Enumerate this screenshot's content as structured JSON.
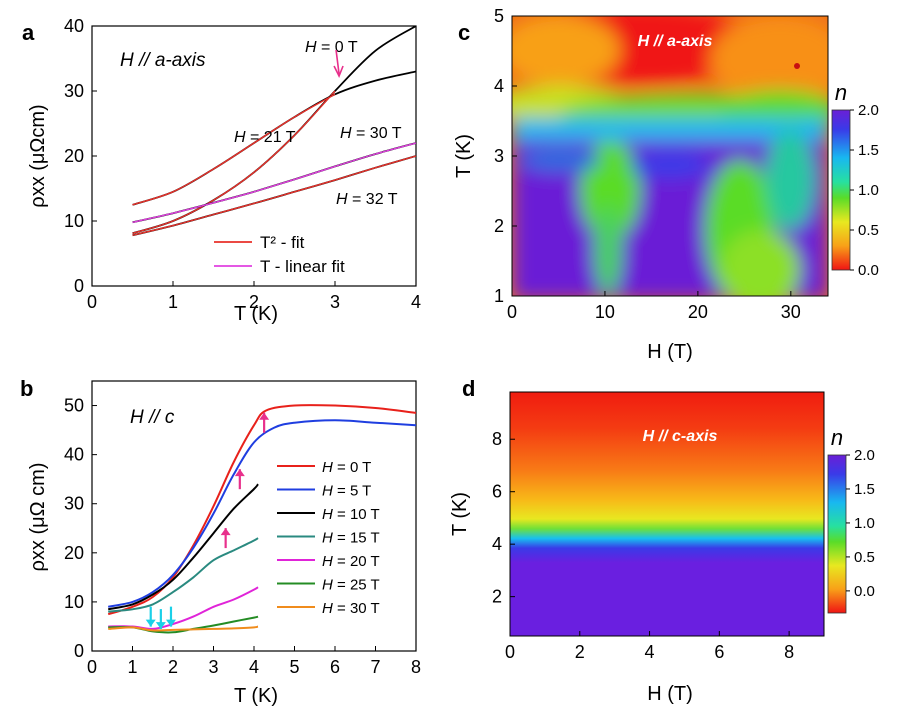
{
  "chart_data": [
    {
      "panel": "a",
      "type": "line",
      "annotation": "H // a-axis",
      "xlabel": "T (K)",
      "ylabel": "ρxx (μΩcm)",
      "xlim": [
        0,
        4
      ],
      "ylim": [
        0,
        40
      ],
      "xticks": [
        0,
        1,
        2,
        3,
        4
      ],
      "yticks": [
        0,
        10,
        20,
        30,
        40
      ],
      "legend_position": "bottom-right",
      "legend": [
        {
          "label": "T² - fit",
          "color": "#e8312a"
        },
        {
          "label": "T - linear fit",
          "color": "#e040e0"
        }
      ],
      "series": [
        {
          "label": "H = 0 T",
          "color": "#000000",
          "x": [
            0.5,
            1,
            1.5,
            2,
            2.5,
            3,
            3.5,
            4
          ],
          "y": [
            8.1,
            10.0,
            13.2,
            17.5,
            23.2,
            30.0,
            36.2,
            40.0
          ]
        },
        {
          "label": "H = 21 T",
          "color": "#000000",
          "x": [
            0.5,
            1,
            1.5,
            2,
            2.5,
            3,
            3.5,
            4
          ],
          "y": [
            12.5,
            14.5,
            18.0,
            22.0,
            26.0,
            29.5,
            31.6,
            33.0
          ]
        },
        {
          "label": "H = 30 T",
          "color": "#000000",
          "x": [
            0.5,
            1,
            1.5,
            2,
            2.5,
            3,
            3.5,
            4
          ],
          "y": [
            9.8,
            11.2,
            12.8,
            14.5,
            16.4,
            18.4,
            20.3,
            22.0
          ]
        },
        {
          "label": "H = 32 T",
          "color": "#000000",
          "x": [
            0.5,
            1,
            1.5,
            2,
            2.5,
            3,
            3.5,
            4
          ],
          "y": [
            7.8,
            9.3,
            11.0,
            12.7,
            14.5,
            16.3,
            18.2,
            20.0
          ]
        }
      ],
      "arrow": {
        "x": 3.05,
        "y": 32,
        "color": "#e8308c"
      }
    },
    {
      "panel": "b",
      "type": "line",
      "annotation": "H // c",
      "xlabel": "T (K)",
      "ylabel": "ρxx (μΩ cm)",
      "xlim": [
        0,
        8
      ],
      "ylim": [
        0,
        55
      ],
      "xticks": [
        0,
        1,
        2,
        3,
        4,
        5,
        6,
        7,
        8
      ],
      "yticks": [
        0,
        10,
        20,
        30,
        40,
        50
      ],
      "legend_position": "right",
      "series": [
        {
          "name": "H = 0 T",
          "color": "#e8211b",
          "x": [
            0.4,
            1,
            1.5,
            2,
            2.5,
            3,
            3.5,
            4,
            4.3,
            5,
            6,
            7,
            8
          ],
          "y": [
            7.5,
            9.0,
            11.0,
            15.0,
            21.5,
            29.5,
            38.5,
            46.0,
            49.0,
            50.0,
            50.0,
            49.5,
            48.5
          ]
        },
        {
          "name": "H = 5 T",
          "color": "#1f3ee0",
          "x": [
            0.4,
            1,
            1.5,
            2,
            2.5,
            3,
            3.5,
            4,
            4.5,
            5,
            6,
            7,
            8
          ],
          "y": [
            9.0,
            10.0,
            12.0,
            15.5,
            21.0,
            28.0,
            36.0,
            42.5,
            45.5,
            46.5,
            47.0,
            46.5,
            46.0
          ]
        },
        {
          "name": "H = 10 T",
          "color": "#000000",
          "x": [
            0.4,
            1,
            1.5,
            2,
            2.5,
            3,
            3.5,
            4,
            4.1
          ],
          "y": [
            8.5,
            9.5,
            11.5,
            14.5,
            19.0,
            24.0,
            29.0,
            33.0,
            34.0
          ]
        },
        {
          "name": "H = 15 T",
          "color": "#2a8a80",
          "x": [
            0.4,
            1,
            1.5,
            2,
            2.5,
            3,
            3.5,
            4,
            4.1
          ],
          "y": [
            8.0,
            8.5,
            9.5,
            12.0,
            15.0,
            18.5,
            20.5,
            22.5,
            23.0
          ]
        },
        {
          "name": "H = 20 T",
          "color": "#e024d8",
          "x": [
            0.4,
            1,
            1.5,
            2,
            2.5,
            3,
            3.5,
            4,
            4.1
          ],
          "y": [
            5.0,
            5.0,
            4.5,
            5.5,
            7.0,
            9.0,
            10.5,
            12.5,
            13.0
          ]
        },
        {
          "name": "H = 25 T",
          "color": "#248c24",
          "x": [
            0.4,
            1,
            1.5,
            2,
            2.5,
            3,
            3.5,
            4,
            4.1
          ],
          "y": [
            4.8,
            4.8,
            4.0,
            3.8,
            4.5,
            5.2,
            6.0,
            6.8,
            7.0
          ]
        },
        {
          "name": "H = 30 T",
          "color": "#f08c1c",
          "x": [
            0.4,
            1,
            1.5,
            2,
            2.5,
            3,
            3.5,
            4,
            4.1
          ],
          "y": [
            4.5,
            4.8,
            4.2,
            4.3,
            4.4,
            4.5,
            4.6,
            4.8,
            5.0
          ]
        }
      ],
      "arrows": [
        {
          "x": 4.25,
          "y": 46.5,
          "dir": "up",
          "color": "#e8308c"
        },
        {
          "x": 3.65,
          "y": 35.0,
          "dir": "up",
          "color": "#e8308c"
        },
        {
          "x": 3.3,
          "y": 23.0,
          "dir": "up",
          "color": "#e8308c"
        },
        {
          "x": 1.45,
          "y": 7.0,
          "dir": "down",
          "color": "#1ad0e8"
        },
        {
          "x": 1.7,
          "y": 6.5,
          "dir": "down",
          "color": "#1ad0e8"
        },
        {
          "x": 1.95,
          "y": 7.0,
          "dir": "down",
          "color": "#1ad0e8"
        }
      ]
    },
    {
      "panel": "c",
      "type": "heatmap",
      "annotation": "H // a-axis",
      "xlabel": "H (T)",
      "ylabel": "T (K)",
      "xlim": [
        0,
        34
      ],
      "ylim": [
        1,
        5
      ],
      "xticks": [
        0,
        10,
        20,
        30
      ],
      "yticks": [
        1,
        2,
        3,
        4,
        5
      ],
      "colorbar": {
        "label": "n",
        "range": [
          0.0,
          2.0
        ],
        "ticks": [
          "2.0",
          "1.5",
          "1.0",
          "0.5",
          "0.0"
        ]
      }
    },
    {
      "panel": "d",
      "type": "heatmap",
      "annotation": "H // c-axis",
      "xlabel": "H (T)",
      "ylabel": "T (K)",
      "xlim": [
        0,
        9
      ],
      "ylim": [
        0.5,
        9.8
      ],
      "xticks": [
        0,
        2,
        4,
        6,
        8
      ],
      "yticks": [
        2,
        4,
        6,
        8
      ],
      "colorbar": {
        "label": "n",
        "range": [
          -0.2,
          2.0
        ],
        "ticks": [
          "2.0",
          "1.5",
          "1.0",
          "0.5",
          "0.0"
        ]
      }
    }
  ]
}
